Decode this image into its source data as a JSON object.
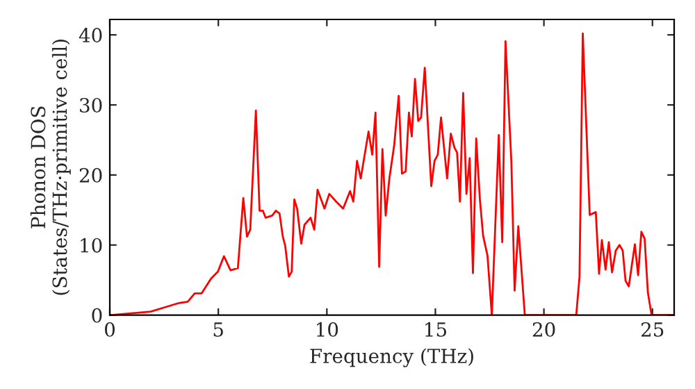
{
  "chart_data": {
    "type": "line",
    "xlabel": "Frequency (THz)",
    "ylabel": "Phonon DOS\n(States/THz·primitive cell)",
    "xlim": [
      0,
      26
    ],
    "ylim": [
      0,
      42.2
    ],
    "xticks": [
      0,
      5,
      10,
      15,
      20,
      25
    ],
    "yticks": [
      0,
      10,
      20,
      30,
      40
    ],
    "grid": false,
    "legend": false,
    "series": [
      {
        "color": "#ff0000",
        "x": [
          0,
          0.06,
          1.88,
          2.52,
          3.16,
          3.59,
          3.91,
          4.23,
          4.66,
          4.98,
          5.26,
          5.56,
          5.9,
          6.15,
          6.32,
          6.47,
          6.73,
          6.9,
          7.05,
          7.18,
          7.48,
          7.65,
          7.82,
          7.97,
          8.08,
          8.25,
          8.38,
          8.5,
          8.63,
          8.82,
          8.97,
          9.25,
          9.42,
          9.57,
          9.89,
          10.11,
          10.43,
          10.75,
          11.07,
          11.22,
          11.39,
          11.56,
          11.92,
          12.09,
          12.24,
          12.41,
          12.56,
          12.71,
          12.88,
          13.1,
          13.31,
          13.46,
          13.63,
          13.78,
          13.91,
          14.06,
          14.21,
          14.34,
          14.51,
          14.81,
          14.96,
          15.11,
          15.26,
          15.54,
          15.71,
          15.88,
          16.0,
          16.13,
          16.28,
          16.43,
          16.58,
          16.73,
          16.88,
          17.05,
          17.2,
          17.4,
          17.6,
          17.92,
          18.08,
          18.23,
          18.5,
          18.65,
          18.82,
          19.12,
          21.49,
          21.64,
          21.79,
          22.11,
          22.39,
          22.54,
          22.67,
          22.84,
          22.99,
          23.14,
          23.31,
          23.48,
          23.63,
          23.76,
          23.91,
          24.04,
          24.19,
          24.34,
          24.49,
          24.64,
          24.79,
          24.96,
          26
        ],
        "values": [
          0,
          0,
          0.5,
          1.1,
          1.7,
          1.9,
          3.1,
          3.1,
          5.2,
          6.2,
          8.4,
          6.4,
          6.7,
          16.7,
          11.2,
          12.2,
          29.2,
          14.9,
          14.9,
          13.9,
          14.2,
          14.9,
          14.5,
          11.2,
          9.9,
          5.5,
          6.2,
          16.5,
          15.2,
          10.2,
          12.9,
          13.9,
          12.2,
          17.9,
          15.2,
          17.3,
          16.2,
          15.2,
          17.7,
          16.2,
          22.0,
          19.5,
          26.2,
          22.9,
          28.9,
          6.9,
          23.7,
          14.2,
          19.5,
          24.2,
          31.3,
          20.2,
          20.5,
          28.9,
          25.5,
          33.7,
          27.7,
          28.2,
          35.3,
          18.4,
          22.0,
          22.9,
          28.2,
          19.5,
          25.9,
          23.9,
          23.2,
          16.2,
          31.7,
          17.3,
          22.4,
          6.0,
          25.2,
          16.5,
          11.3,
          8.5,
          0,
          25.7,
          10.4,
          39.1,
          21.9,
          3.5,
          12.7,
          0,
          0,
          5.5,
          40.2,
          14.3,
          14.7,
          5.9,
          10.7,
          6.5,
          10.4,
          6.1,
          9.2,
          10.0,
          9.2,
          4.9,
          4.1,
          6.9,
          10.1,
          5.7,
          11.9,
          10.9,
          3.2,
          0,
          0
        ]
      }
    ]
  }
}
